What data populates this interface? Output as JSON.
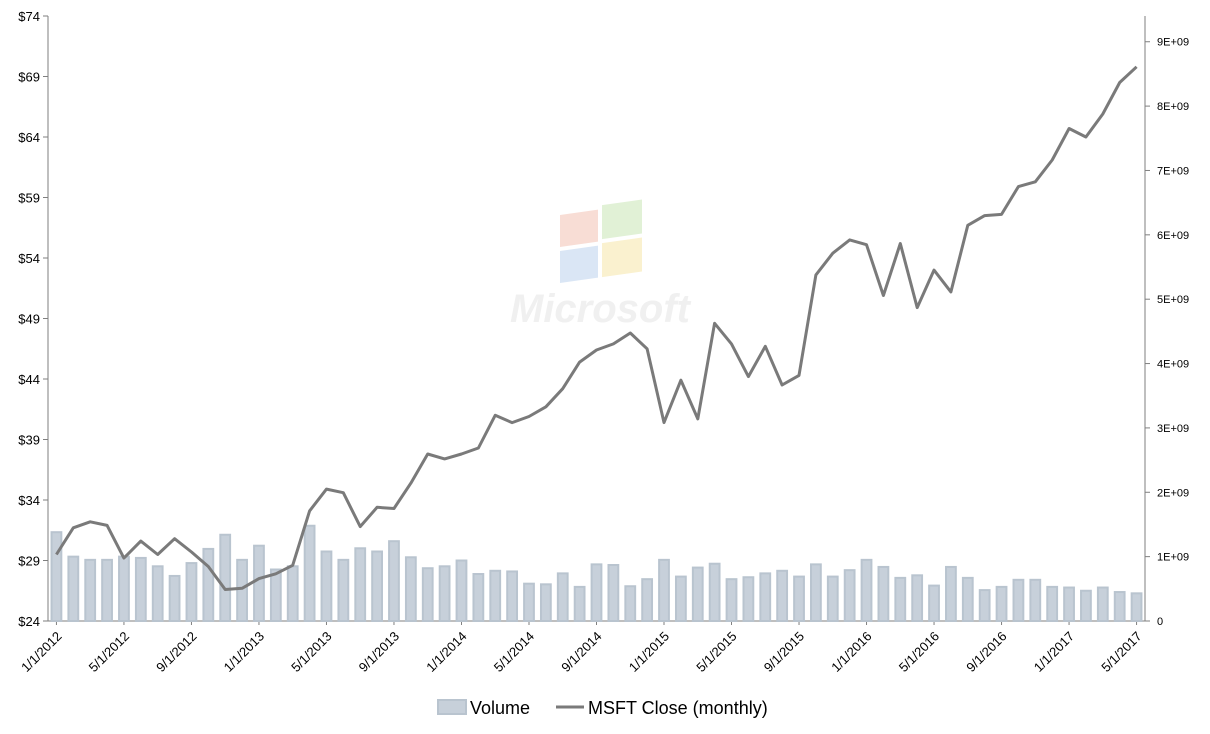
{
  "chart_data": {
    "type": "bar+line",
    "x_dates": [
      "1/1/2012",
      "2/1/2012",
      "3/1/2012",
      "4/1/2012",
      "5/1/2012",
      "6/1/2012",
      "7/1/2012",
      "8/1/2012",
      "9/1/2012",
      "10/1/2012",
      "11/1/2012",
      "12/1/2012",
      "1/1/2013",
      "2/1/2013",
      "3/1/2013",
      "4/1/2013",
      "5/1/2013",
      "6/1/2013",
      "7/1/2013",
      "8/1/2013",
      "9/1/2013",
      "10/1/2013",
      "11/1/2013",
      "12/1/2013",
      "1/1/2014",
      "2/1/2014",
      "3/1/2014",
      "4/1/2014",
      "5/1/2014",
      "6/1/2014",
      "7/1/2014",
      "8/1/2014",
      "9/1/2014",
      "10/1/2014",
      "11/1/2014",
      "12/1/2014",
      "1/1/2015",
      "2/1/2015",
      "3/1/2015",
      "4/1/2015",
      "5/1/2015",
      "6/1/2015",
      "7/1/2015",
      "8/1/2015",
      "9/1/2015",
      "10/1/2015",
      "11/1/2015",
      "12/1/2015",
      "1/1/2016",
      "2/1/2016",
      "3/1/2016",
      "4/1/2016",
      "5/1/2016",
      "6/1/2016",
      "7/1/2016",
      "8/1/2016",
      "9/1/2016",
      "10/1/2016",
      "11/1/2016",
      "12/1/2016",
      "1/1/2017",
      "2/1/2017",
      "3/1/2017",
      "4/1/2017",
      "5/1/2017"
    ],
    "x_tick_labels": [
      "1/1/2012",
      "5/1/2012",
      "9/1/2012",
      "1/1/2013",
      "5/1/2013",
      "9/1/2013",
      "1/1/2014",
      "5/1/2014",
      "9/1/2014",
      "1/1/2015",
      "5/1/2015",
      "9/1/2015",
      "1/1/2016",
      "5/1/2016",
      "9/1/2016",
      "1/1/2017",
      "5/1/2017"
    ],
    "series": [
      {
        "name": "Volume",
        "kind": "bar",
        "axis": "right",
        "values": [
          1380000000,
          1000000000,
          950000000,
          950000000,
          1000000000,
          980000000,
          850000000,
          700000000,
          900000000,
          1120000000,
          1340000000,
          950000000,
          1170000000,
          800000000,
          850000000,
          1480000000,
          1080000000,
          950000000,
          1130000000,
          1080000000,
          1240000000,
          990000000,
          820000000,
          850000000,
          940000000,
          730000000,
          780000000,
          770000000,
          580000000,
          570000000,
          740000000,
          530000000,
          880000000,
          870000000,
          540000000,
          650000000,
          950000000,
          690000000,
          830000000,
          890000000,
          650000000,
          680000000,
          740000000,
          780000000,
          690000000,
          880000000,
          690000000,
          790000000,
          950000000,
          840000000,
          670000000,
          710000000,
          550000000,
          840000000,
          670000000,
          480000000,
          530000000,
          640000000,
          640000000,
          530000000,
          520000000,
          470000000,
          520000000,
          450000000,
          430000000
        ]
      },
      {
        "name": "MSFT Close (monthly)",
        "kind": "line",
        "axis": "left",
        "values": [
          29.5,
          31.7,
          32.2,
          31.9,
          29.2,
          30.6,
          29.5,
          30.8,
          29.7,
          28.5,
          26.6,
          26.7,
          27.5,
          27.9,
          28.6,
          33.1,
          34.9,
          34.6,
          31.8,
          33.4,
          33.3,
          35.4,
          37.8,
          37.4,
          37.8,
          38.3,
          41.0,
          40.4,
          40.9,
          41.7,
          43.2,
          45.4,
          46.4,
          46.9,
          47.8,
          46.5,
          40.4,
          43.9,
          40.7,
          48.6,
          46.9,
          44.2,
          46.7,
          43.5,
          44.3,
          52.6,
          54.4,
          55.5,
          55.1,
          50.9,
          55.2,
          49.9,
          53.0,
          51.2,
          56.7,
          57.5,
          57.6,
          59.9,
          60.3,
          62.1,
          64.7,
          64.0,
          65.9,
          68.5,
          69.8
        ]
      }
    ],
    "y_left": {
      "min": 24,
      "max": 74,
      "ticks": [
        "$24",
        "$29",
        "$34",
        "$39",
        "$44",
        "$49",
        "$54",
        "$59",
        "$64",
        "$69",
        "$74"
      ]
    },
    "y_right": {
      "min": 0,
      "max": 9400000000,
      "ticks": [
        "0",
        "1E+09",
        "2E+09",
        "3E+09",
        "4E+09",
        "5E+09",
        "6E+09",
        "7E+09",
        "8E+09",
        "9E+09"
      ]
    },
    "legend": {
      "position": "bottom",
      "entries": [
        "Volume",
        "MSFT Close (monthly)"
      ]
    },
    "grid": false,
    "colors": {
      "bar_fill": "#c7d0da",
      "bar_stroke": "#b9c4cf",
      "line": "#7a7a7a",
      "axis": "#7f7f7f"
    }
  },
  "watermark": {
    "text": "Microsoft",
    "icon": "windows-flag-logo"
  }
}
